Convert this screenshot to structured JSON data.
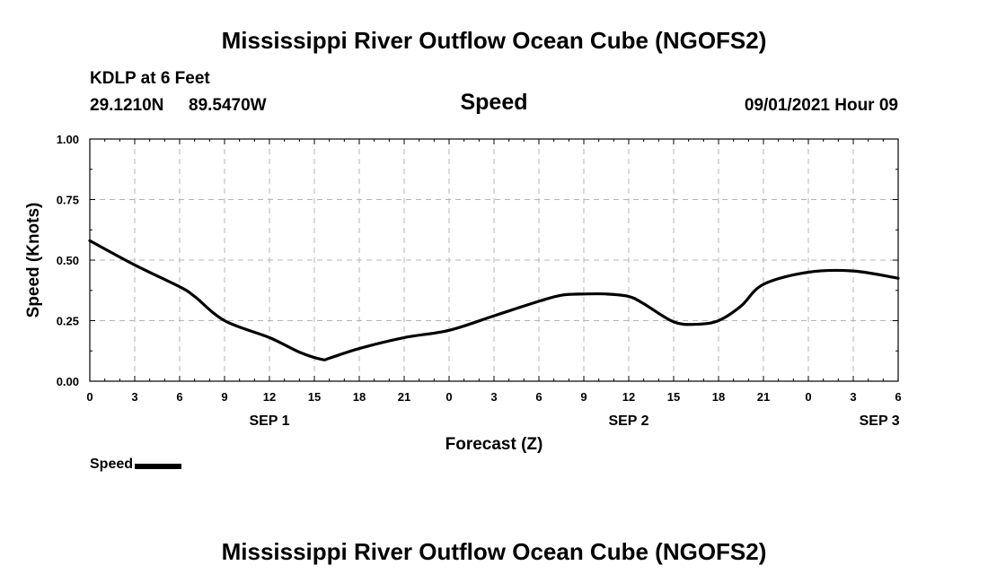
{
  "header": {
    "title": "Mississippi River Outflow Ocean Cube (NGOFS2)",
    "station": "KDLP at 6 Feet",
    "latitude": "29.1210N",
    "longitude": "89.5470W",
    "run_time": "09/01/2021 Hour 09"
  },
  "footer": {
    "title": "Mississippi River Outflow Ocean Cube (NGOFS2)"
  },
  "legend": {
    "label": "Speed"
  },
  "chart_data": {
    "type": "line",
    "title": "Speed",
    "xlabel": "Forecast (Z)",
    "ylabel": "Speed (Knots)",
    "xlim": [
      0,
      54
    ],
    "ylim": [
      0,
      1
    ],
    "x_ticks": [
      {
        "x": 0,
        "label": "0"
      },
      {
        "x": 3,
        "label": "3"
      },
      {
        "x": 6,
        "label": "6"
      },
      {
        "x": 9,
        "label": "9"
      },
      {
        "x": 12,
        "label": "12"
      },
      {
        "x": 15,
        "label": "15"
      },
      {
        "x": 18,
        "label": "18"
      },
      {
        "x": 21,
        "label": "21"
      },
      {
        "x": 24,
        "label": "0"
      },
      {
        "x": 27,
        "label": "3"
      },
      {
        "x": 30,
        "label": "6"
      },
      {
        "x": 33,
        "label": "9"
      },
      {
        "x": 36,
        "label": "12"
      },
      {
        "x": 39,
        "label": "15"
      },
      {
        "x": 42,
        "label": "18"
      },
      {
        "x": 45,
        "label": "21"
      },
      {
        "x": 48,
        "label": "0"
      },
      {
        "x": 51,
        "label": "3"
      },
      {
        "x": 54,
        "label": "6"
      }
    ],
    "y_ticks": [
      {
        "y": 0,
        "label": "0.00"
      },
      {
        "y": 0.25,
        "label": "0.25"
      },
      {
        "y": 0.5,
        "label": "0.50"
      },
      {
        "y": 0.75,
        "label": "0.75"
      },
      {
        "y": 1,
        "label": "1.00"
      }
    ],
    "day_labels": [
      {
        "x": 12,
        "label": "SEP 1"
      },
      {
        "x": 36,
        "label": "SEP 2"
      },
      {
        "x": 52.75,
        "label": "SEP 3"
      }
    ],
    "grid": true,
    "series": [
      {
        "name": "Speed",
        "color": "#000000",
        "x": [
          0,
          3,
          6,
          7,
          9,
          12,
          14,
          15.5,
          16,
          18,
          21,
          24,
          27,
          30,
          31.5,
          33,
          34.5,
          36,
          37,
          39,
          40.5,
          42,
          43.5,
          45,
          48,
          51,
          54
        ],
        "y": [
          0.58,
          0.48,
          0.39,
          0.35,
          0.25,
          0.18,
          0.12,
          0.09,
          0.095,
          0.135,
          0.18,
          0.21,
          0.27,
          0.33,
          0.355,
          0.36,
          0.36,
          0.35,
          0.32,
          0.245,
          0.235,
          0.25,
          0.31,
          0.4,
          0.45,
          0.455,
          0.425
        ]
      }
    ]
  }
}
